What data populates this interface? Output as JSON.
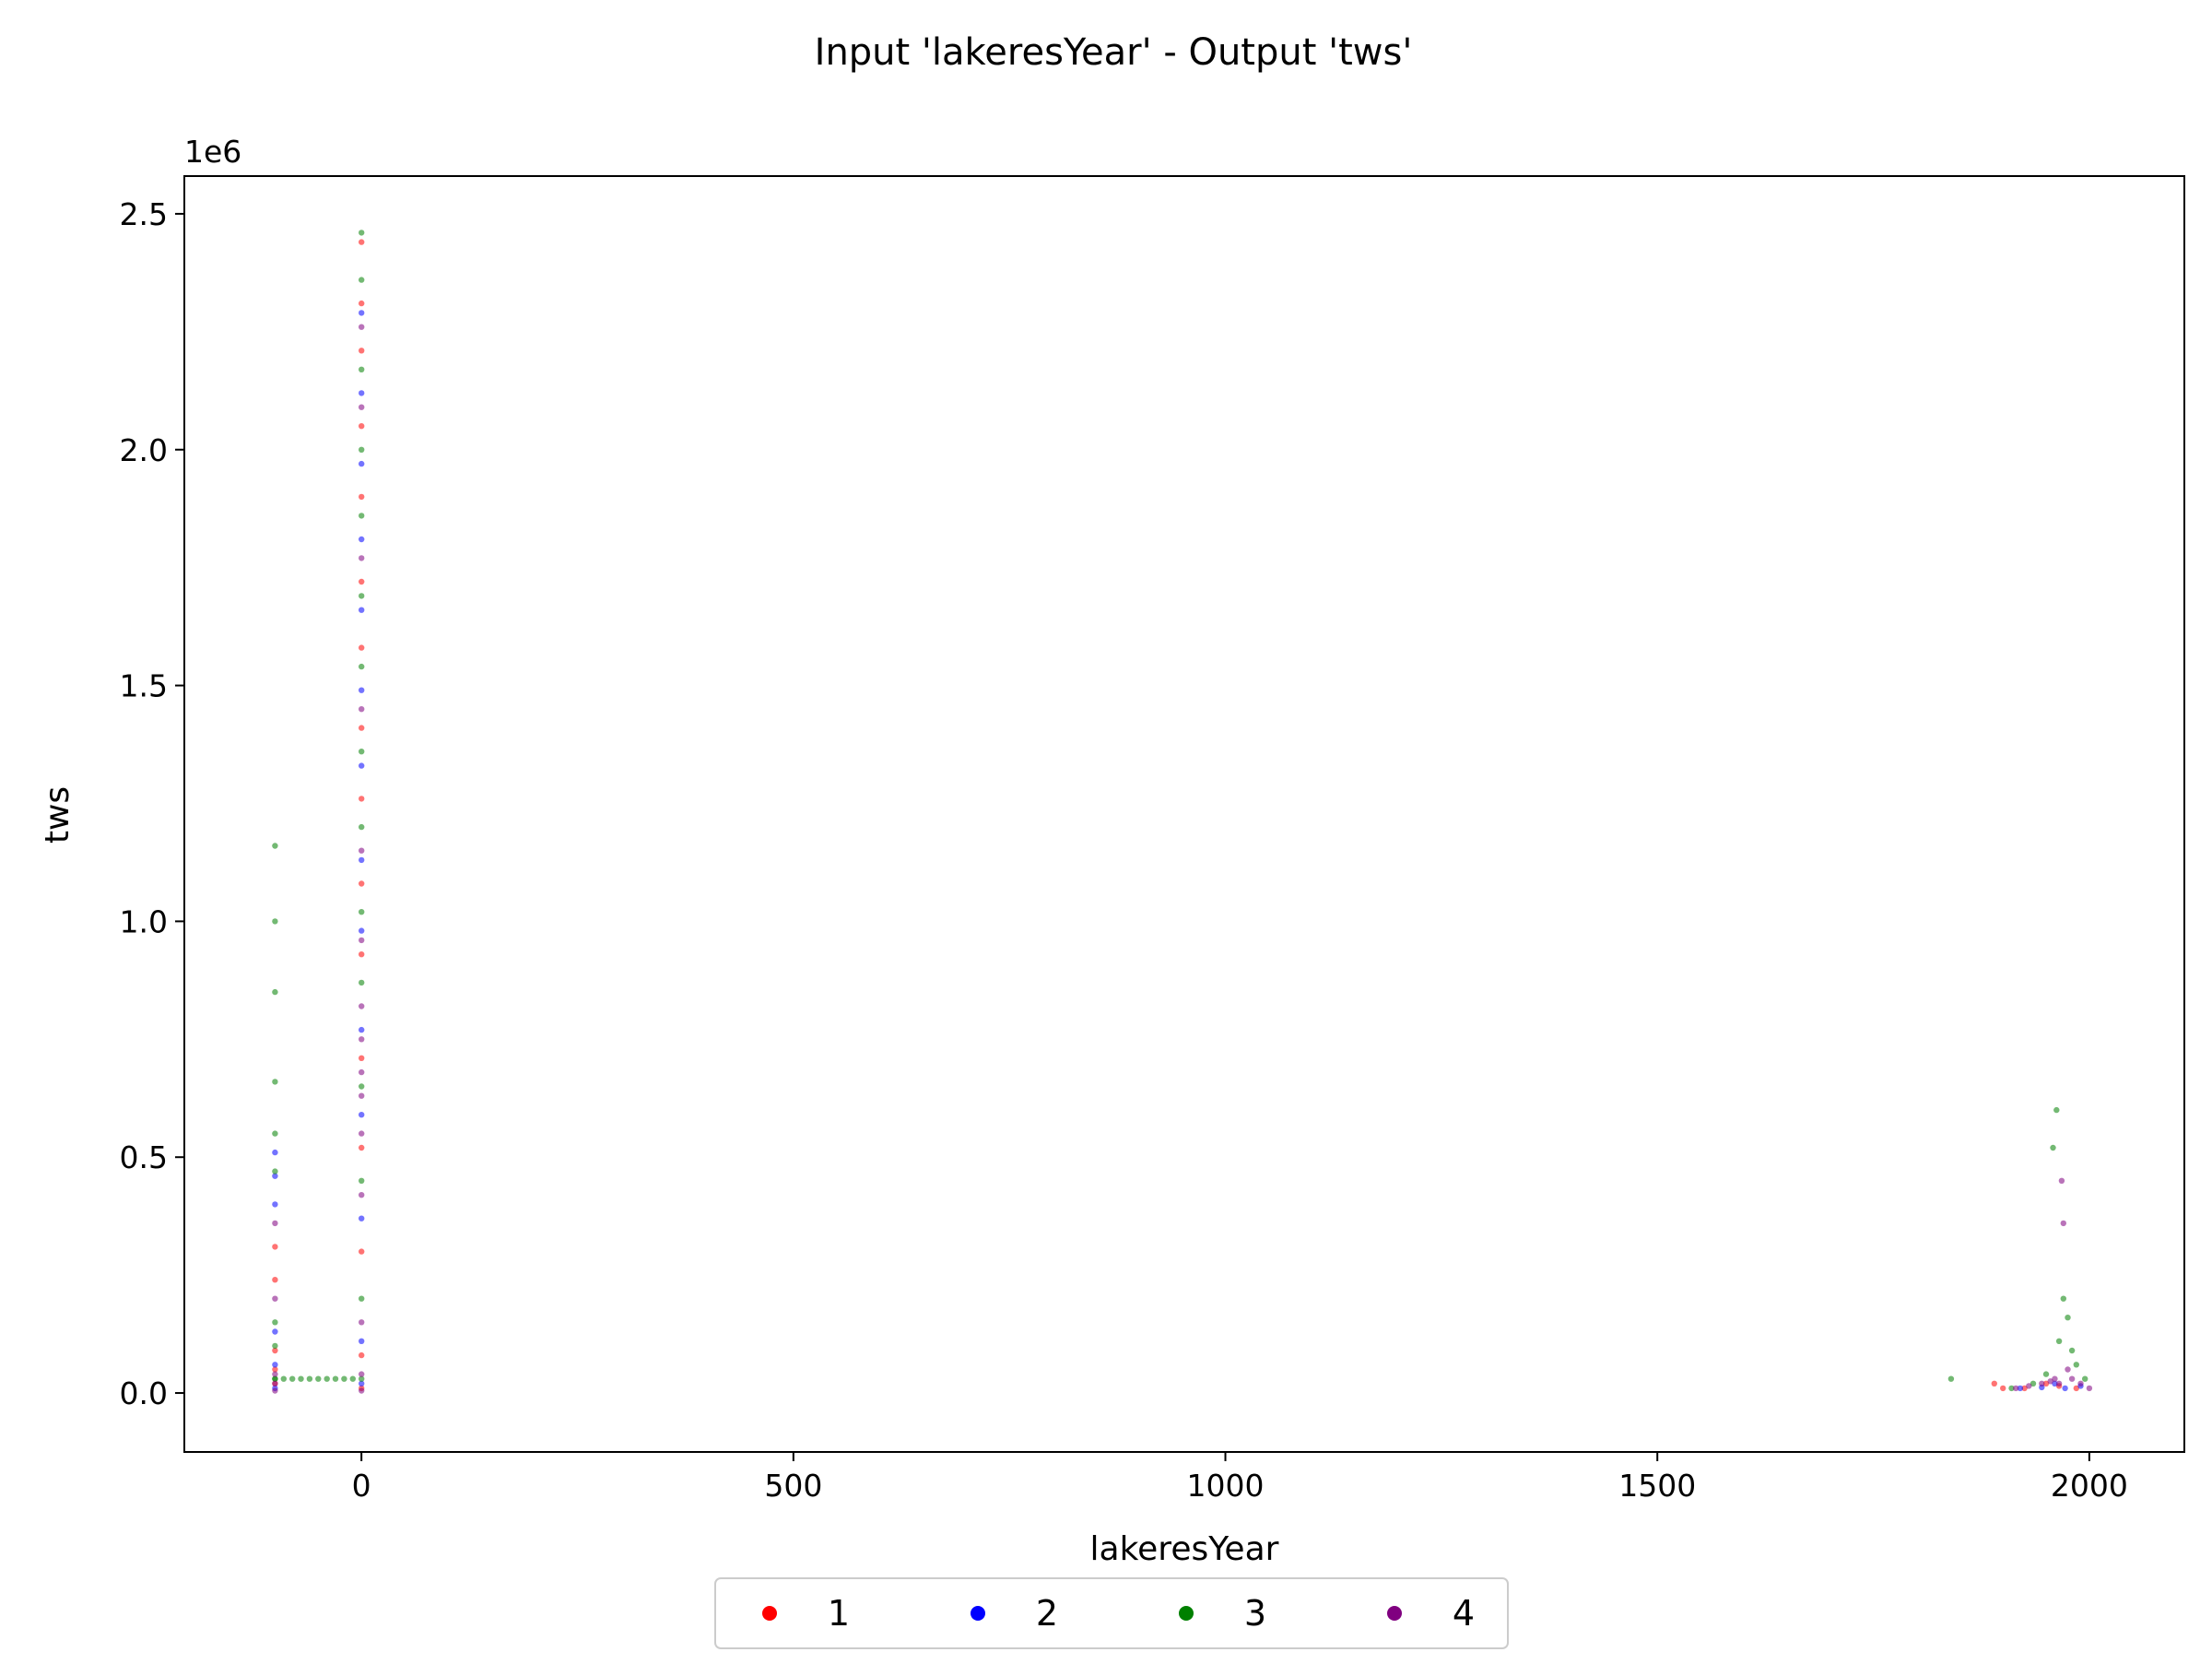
{
  "chart_data": {
    "type": "scatter",
    "title": "Input 'lakeresYear' - Output 'tws'",
    "xlabel": "lakeresYear",
    "ylabel": "tws",
    "y_scale_label": "1e6",
    "xlim": [
      -205,
      2110
    ],
    "ylim": [
      -0.125,
      2.58
    ],
    "y_unit_multiplier": 1000000,
    "x_ticks": [
      0,
      500,
      1000,
      1500,
      2000
    ],
    "x_tick_labels": [
      "0",
      "500",
      "1000",
      "1500",
      "2000"
    ],
    "y_ticks": [
      0.0,
      0.5,
      1.0,
      1.5,
      2.0,
      2.5
    ],
    "y_tick_labels": [
      "0.0",
      "0.5",
      "1.0",
      "1.5",
      "2.0",
      "2.5"
    ],
    "grid": false,
    "legend_position": "bottom-center",
    "series": [
      {
        "name": "1",
        "color": "#ff0000",
        "points": [
          [
            -100,
            0.02
          ],
          [
            -100,
            0.05
          ],
          [
            -100,
            0.09
          ],
          [
            -100,
            0.24
          ],
          [
            -100,
            0.31
          ],
          [
            0,
            0.01
          ],
          [
            0,
            0.08
          ],
          [
            0,
            0.3
          ],
          [
            0,
            0.52
          ],
          [
            0,
            0.71
          ],
          [
            0,
            0.93
          ],
          [
            0,
            1.08
          ],
          [
            0,
            1.26
          ],
          [
            0,
            1.41
          ],
          [
            0,
            1.58
          ],
          [
            0,
            1.72
          ],
          [
            0,
            1.9
          ],
          [
            0,
            2.05
          ],
          [
            0,
            2.21
          ],
          [
            0,
            2.31
          ],
          [
            0,
            2.44
          ],
          [
            1890,
            0.02
          ],
          [
            1900,
            0.01
          ],
          [
            1925,
            0.01
          ],
          [
            1950,
            0.02
          ],
          [
            1965,
            0.015
          ],
          [
            1985,
            0.01
          ]
        ]
      },
      {
        "name": "2",
        "color": "#0000ff",
        "points": [
          [
            -100,
            0.01
          ],
          [
            -100,
            0.06
          ],
          [
            -100,
            0.13
          ],
          [
            -100,
            0.4
          ],
          [
            -100,
            0.46
          ],
          [
            -100,
            0.51
          ],
          [
            0,
            0.02
          ],
          [
            0,
            0.11
          ],
          [
            0,
            0.37
          ],
          [
            0,
            0.59
          ],
          [
            0,
            0.77
          ],
          [
            0,
            0.98
          ],
          [
            0,
            1.13
          ],
          [
            0,
            1.33
          ],
          [
            0,
            1.49
          ],
          [
            0,
            1.66
          ],
          [
            0,
            1.81
          ],
          [
            0,
            1.97
          ],
          [
            0,
            2.12
          ],
          [
            0,
            2.29
          ],
          [
            1920,
            0.01
          ],
          [
            1945,
            0.012
          ],
          [
            1960,
            0.02
          ],
          [
            1972,
            0.01
          ],
          [
            1990,
            0.015
          ]
        ]
      },
      {
        "name": "3",
        "color": "#008000",
        "points": [
          [
            -100,
            0.03
          ],
          [
            -100,
            0.1
          ],
          [
            -100,
            0.15
          ],
          [
            -100,
            0.47
          ],
          [
            -100,
            0.55
          ],
          [
            -100,
            0.66
          ],
          [
            -100,
            0.85
          ],
          [
            -100,
            1.0
          ],
          [
            -100,
            1.16
          ],
          [
            -100,
            0.03
          ],
          [
            -90,
            0.03
          ],
          [
            -80,
            0.03
          ],
          [
            -70,
            0.03
          ],
          [
            -60,
            0.03
          ],
          [
            -50,
            0.03
          ],
          [
            -40,
            0.03
          ],
          [
            -30,
            0.03
          ],
          [
            -20,
            0.03
          ],
          [
            -10,
            0.03
          ],
          [
            0,
            0.03
          ],
          [
            0,
            0.2
          ],
          [
            0,
            0.45
          ],
          [
            0,
            0.65
          ],
          [
            0,
            0.87
          ],
          [
            0,
            1.02
          ],
          [
            0,
            1.2
          ],
          [
            0,
            1.36
          ],
          [
            0,
            1.54
          ],
          [
            0,
            1.69
          ],
          [
            0,
            1.86
          ],
          [
            0,
            2.0
          ],
          [
            0,
            2.17
          ],
          [
            0,
            2.36
          ],
          [
            0,
            2.46
          ],
          [
            1840,
            0.03
          ],
          [
            1910,
            0.01
          ],
          [
            1935,
            0.02
          ],
          [
            1950,
            0.04
          ],
          [
            1958,
            0.52
          ],
          [
            1962,
            0.6
          ],
          [
            1965,
            0.11
          ],
          [
            1970,
            0.2
          ],
          [
            1975,
            0.16
          ],
          [
            1980,
            0.09
          ],
          [
            1985,
            0.06
          ],
          [
            1995,
            0.03
          ]
        ]
      },
      {
        "name": "4",
        "color": "#800080",
        "points": [
          [
            -100,
            0.005
          ],
          [
            -100,
            0.02
          ],
          [
            -100,
            0.04
          ],
          [
            -100,
            0.2
          ],
          [
            -100,
            0.36
          ],
          [
            0,
            0.005
          ],
          [
            0,
            0.04
          ],
          [
            0,
            0.15
          ],
          [
            0,
            0.42
          ],
          [
            0,
            0.55
          ],
          [
            0,
            0.63
          ],
          [
            0,
            0.68
          ],
          [
            0,
            0.75
          ],
          [
            0,
            0.82
          ],
          [
            0,
            0.96
          ],
          [
            0,
            1.15
          ],
          [
            0,
            1.45
          ],
          [
            0,
            1.77
          ],
          [
            0,
            2.09
          ],
          [
            0,
            2.26
          ],
          [
            1915,
            0.01
          ],
          [
            1930,
            0.015
          ],
          [
            1945,
            0.02
          ],
          [
            1955,
            0.025
          ],
          [
            1960,
            0.03
          ],
          [
            1965,
            0.02
          ],
          [
            1968,
            0.45
          ],
          [
            1970,
            0.36
          ],
          [
            1975,
            0.05
          ],
          [
            1980,
            0.03
          ],
          [
            1990,
            0.02
          ],
          [
            2000,
            0.01
          ]
        ]
      }
    ]
  }
}
